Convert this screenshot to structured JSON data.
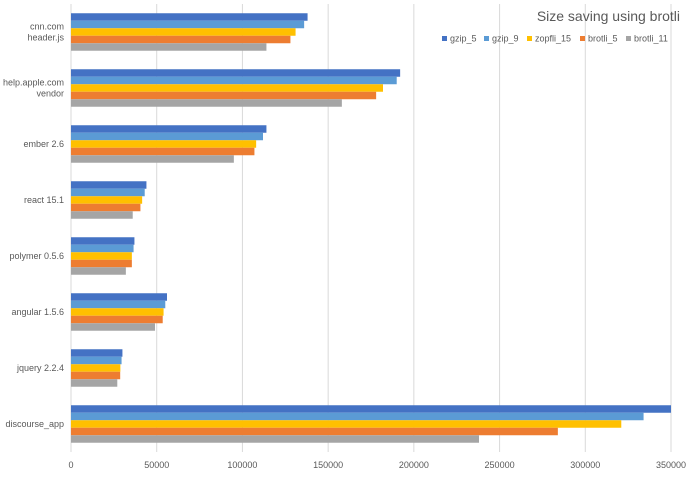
{
  "chart_data": {
    "type": "bar",
    "orientation": "horizontal",
    "title": "Size saving using brotli",
    "xlabel": "",
    "ylabel": "",
    "xlim": [
      0,
      350000
    ],
    "xticks": [
      0,
      50000,
      100000,
      150000,
      200000,
      250000,
      300000,
      350000
    ],
    "xtick_labels": [
      "0",
      "50000",
      "100000",
      "150000",
      "200000",
      "250000",
      "300000",
      "350000"
    ],
    "grid": "vertical",
    "legend_position": "top-right",
    "categories": [
      [
        "cnn.com",
        "header.js"
      ],
      [
        "help.apple.com",
        "vendor"
      ],
      [
        "ember 2.6"
      ],
      [
        "react 15.1"
      ],
      [
        "polymer 0.5.6"
      ],
      [
        "angular 1.5.6"
      ],
      [
        "jquery 2.2.4"
      ],
      [
        "discourse_app"
      ]
    ],
    "series": [
      {
        "name": "gzip_5",
        "color": "#4472c4",
        "values": [
          138000,
          192000,
          114000,
          44000,
          37000,
          56000,
          30000,
          350000
        ]
      },
      {
        "name": "gzip_9",
        "color": "#5b9bd5",
        "values": [
          136000,
          190000,
          112000,
          43000,
          36500,
          55000,
          29500,
          334000
        ]
      },
      {
        "name": "zopfli_15",
        "color": "#ffc000",
        "values": [
          131000,
          182000,
          108000,
          41500,
          35500,
          54000,
          28800,
          321000
        ]
      },
      {
        "name": "brotli_5",
        "color": "#ed7d31",
        "values": [
          128000,
          178000,
          107000,
          40500,
          35500,
          53500,
          28700,
          284000
        ]
      },
      {
        "name": "brotli_11",
        "color": "#a5a5a5",
        "values": [
          114000,
          158000,
          95000,
          36000,
          32000,
          49000,
          27000,
          238000
        ]
      }
    ]
  }
}
